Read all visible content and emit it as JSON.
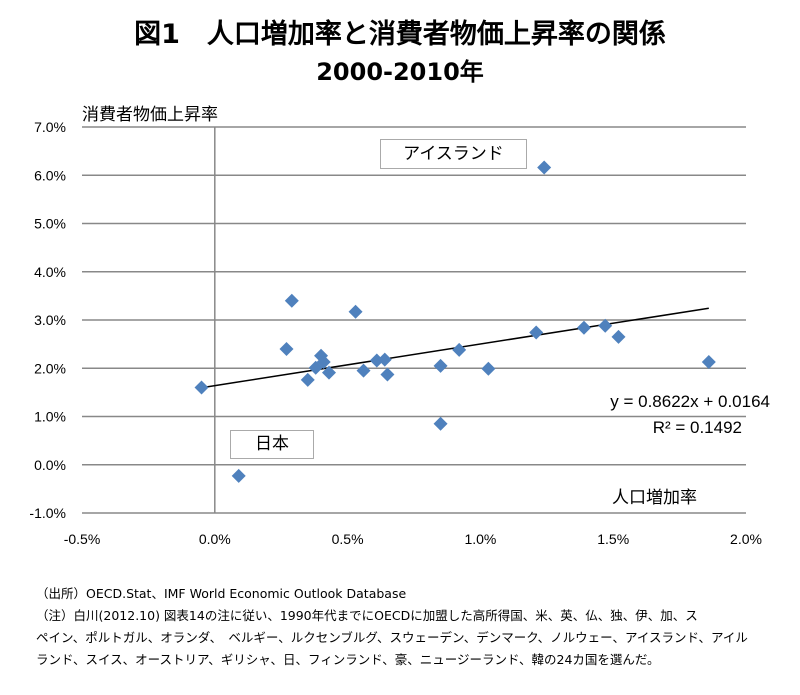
{
  "chart_data": {
    "type": "scatter",
    "title": "図1　人口増加率と消費者物価上昇率の関係",
    "subtitle": "2000-2010年",
    "xlabel": "人口増加率",
    "ylabel": "消費者物価上昇率",
    "xlim": [
      -0.5,
      2.0
    ],
    "ylim": [
      -1.0,
      7.0
    ],
    "x_ticks": [
      "-0.5%",
      "0.0%",
      "0.5%",
      "1.0%",
      "1.5%",
      "2.0%"
    ],
    "y_ticks": [
      "-1.0%",
      "0.0%",
      "1.0%",
      "2.0%",
      "3.0%",
      "4.0%",
      "5.0%",
      "6.0%",
      "7.0%"
    ],
    "grid": "horizontal",
    "marker_color": "#4f81bd",
    "points": [
      {
        "x": -0.05,
        "y": 1.6
      },
      {
        "x": 0.09,
        "y": -0.23
      },
      {
        "x": 0.27,
        "y": 2.4
      },
      {
        "x": 0.29,
        "y": 3.4
      },
      {
        "x": 0.35,
        "y": 1.76
      },
      {
        "x": 0.38,
        "y": 2.01
      },
      {
        "x": 0.4,
        "y": 2.26
      },
      {
        "x": 0.41,
        "y": 2.13
      },
      {
        "x": 0.43,
        "y": 1.91
      },
      {
        "x": 0.53,
        "y": 3.17
      },
      {
        "x": 0.56,
        "y": 1.95
      },
      {
        "x": 0.61,
        "y": 2.16
      },
      {
        "x": 0.64,
        "y": 2.18
      },
      {
        "x": 0.65,
        "y": 1.87
      },
      {
        "x": 0.85,
        "y": 2.05
      },
      {
        "x": 0.85,
        "y": 0.85
      },
      {
        "x": 0.92,
        "y": 2.38
      },
      {
        "x": 1.03,
        "y": 1.99
      },
      {
        "x": 1.21,
        "y": 2.74
      },
      {
        "x": 1.24,
        "y": 6.16
      },
      {
        "x": 1.39,
        "y": 2.84
      },
      {
        "x": 1.47,
        "y": 2.88
      },
      {
        "x": 1.52,
        "y": 2.65
      },
      {
        "x": 1.86,
        "y": 2.13
      }
    ],
    "trendline": {
      "slope": 0.8622,
      "intercept": 0.0164,
      "x_range": [
        -0.05,
        1.86
      ],
      "equation": "y = 0.8622x + 0.0164",
      "r2": "R² = 0.1492"
    },
    "annotations": {
      "iceland": "アイスランド",
      "japan": "日本"
    }
  },
  "notes": {
    "source": "（出所）OECD.Stat、IMF World Economic Outlook Database",
    "note_lines": [
      "（注）白川(2012.10) 図表14の注に従い、1990年代までにOECDに加盟した高所得国、米、英、仏、独、伊、加、ス",
      "ペイン、ポルトガル、オランダ、　ベルギー、ルクセンブルグ、スウェーデン、デンマーク、ノルウェー、アイスランド、アイル",
      "ランド、スイス、オーストリア、ギリシャ、日、フィンランド、豪、ニュージーランド、韓の24カ国を選んだ。"
    ]
  }
}
